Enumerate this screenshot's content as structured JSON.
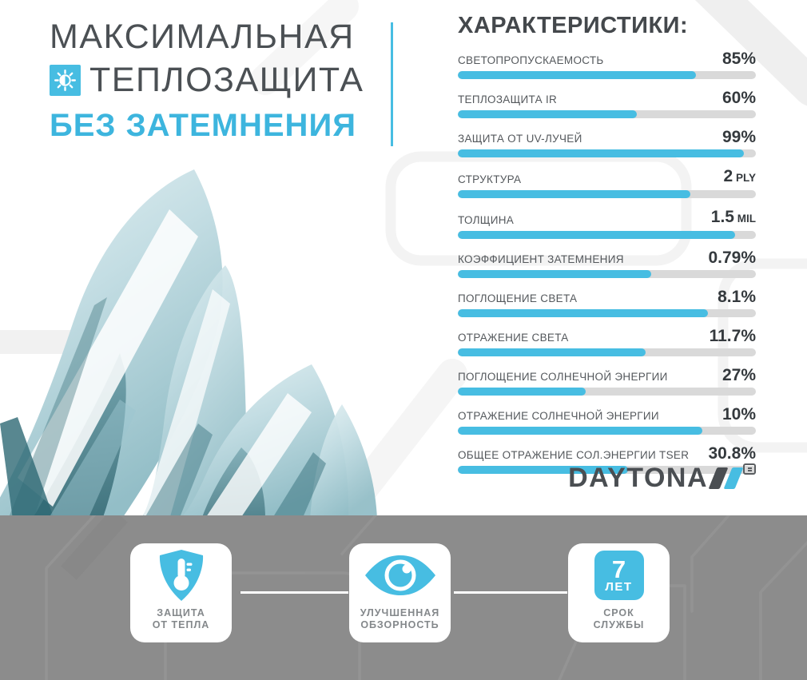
{
  "colors": {
    "accent": "#47bde2",
    "accent_text": "#3db5de",
    "title_dark": "#4b5054",
    "bar_track": "#d9d9d9",
    "band_gray": "#8c8c8c"
  },
  "header": {
    "title_line1": "МАКСИМАЛЬНАЯ",
    "title_line2": "ТЕПЛОЗАЩИТА",
    "title_line3": "БЕЗ ЗАТЕМНЕНИЯ",
    "icon": "sun-contrast-icon"
  },
  "characteristics": {
    "heading": "ХАРАКТЕРИСТИКИ:",
    "rows": [
      {
        "label": "СВЕТОПРОПУСКАЕМОСТЬ",
        "value": "85%",
        "unit": "",
        "fill_percent": 80
      },
      {
        "label": "ТЕПЛОЗАЩИТА IR",
        "value": "60%",
        "unit": "",
        "fill_percent": 60
      },
      {
        "label": "ЗАЩИТА ОТ UV-ЛУЧЕЙ",
        "value": "99%",
        "unit": "",
        "fill_percent": 96
      },
      {
        "label": "СТРУКТУРА",
        "value": "2",
        "unit": "PLY",
        "fill_percent": 78
      },
      {
        "label": "ТОЛЩИНА",
        "value": "1.5",
        "unit": "MIL",
        "fill_percent": 93
      },
      {
        "label": "КОЭФФИЦИЕНТ ЗАТЕМНЕНИЯ",
        "value": "0.79%",
        "unit": "",
        "fill_percent": 65
      },
      {
        "label": "ПОГЛОЩЕНИЕ СВЕТА",
        "value": "8.1%",
        "unit": "",
        "fill_percent": 84
      },
      {
        "label": "ОТРАЖЕНИЕ СВЕТА",
        "value": "11.7%",
        "unit": "",
        "fill_percent": 63
      },
      {
        "label": "ПОГЛОЩЕНИЕ СОЛНЕЧНОЙ ЭНЕРГИИ",
        "value": "27%",
        "unit": "",
        "fill_percent": 43
      },
      {
        "label": "ОТРАЖЕНИЕ СОЛНЕЧНОЙ ЭНЕРГИИ",
        "value": "10%",
        "unit": "",
        "fill_percent": 82
      },
      {
        "label": "ОБЩЕЕ ОТРАЖЕНИЕ СОЛ.ЭНЕРГИИ TSER",
        "value": "30.8%",
        "unit": "",
        "fill_percent": 57
      }
    ]
  },
  "chart_data": {
    "type": "bar",
    "orientation": "horizontal",
    "title": "ХАРАКТЕРИСТИКИ:",
    "categories": [
      "СВЕТОПРОПУСКАЕМОСТЬ",
      "ТЕПЛОЗАЩИТА IR",
      "ЗАЩИТА ОТ UV-ЛУЧЕЙ",
      "СТРУКТУРА",
      "ТОЛЩИНА",
      "КОЭФФИЦИЕНТ ЗАТЕМНЕНИЯ",
      "ПОГЛОЩЕНИЕ СВЕТА",
      "ОТРАЖЕНИЕ СВЕТА",
      "ПОГЛОЩЕНИЕ СОЛНЕЧНОЙ ЭНЕРГИИ",
      "ОТРАЖЕНИЕ СОЛНЕЧНОЙ ЭНЕРГИИ",
      "ОБЩЕЕ ОТРАЖЕНИЕ СОЛ.ЭНЕРГИИ TSER"
    ],
    "value_labels": [
      "85%",
      "60%",
      "99%",
      "2 PLY",
      "1.5 MIL",
      "0.79%",
      "8.1%",
      "11.7%",
      "27%",
      "10%",
      "30.8%"
    ],
    "bar_fill_percent_of_track": [
      80,
      60,
      96,
      78,
      93,
      65,
      84,
      63,
      43,
      82,
      57
    ],
    "legend": false,
    "grid": false
  },
  "logo": {
    "text": "DAYTONA",
    "marks": [
      "dark-slash",
      "blue-slash",
      "registered-mark"
    ]
  },
  "features": [
    {
      "icon": "shield-thermometer-icon",
      "label_line1": "ЗАЩИТА",
      "label_line2": "ОТ ТЕПЛА"
    },
    {
      "icon": "eye-icon",
      "label_line1": "УЛУЧШЕННАЯ",
      "label_line2": "ОБЗОРНОСТЬ"
    },
    {
      "icon": "seven-years-badge",
      "badge_number": "7",
      "badge_unit": "ЛЕТ",
      "label_line1": "СРОК",
      "label_line2": "СЛУЖБЫ"
    }
  ]
}
